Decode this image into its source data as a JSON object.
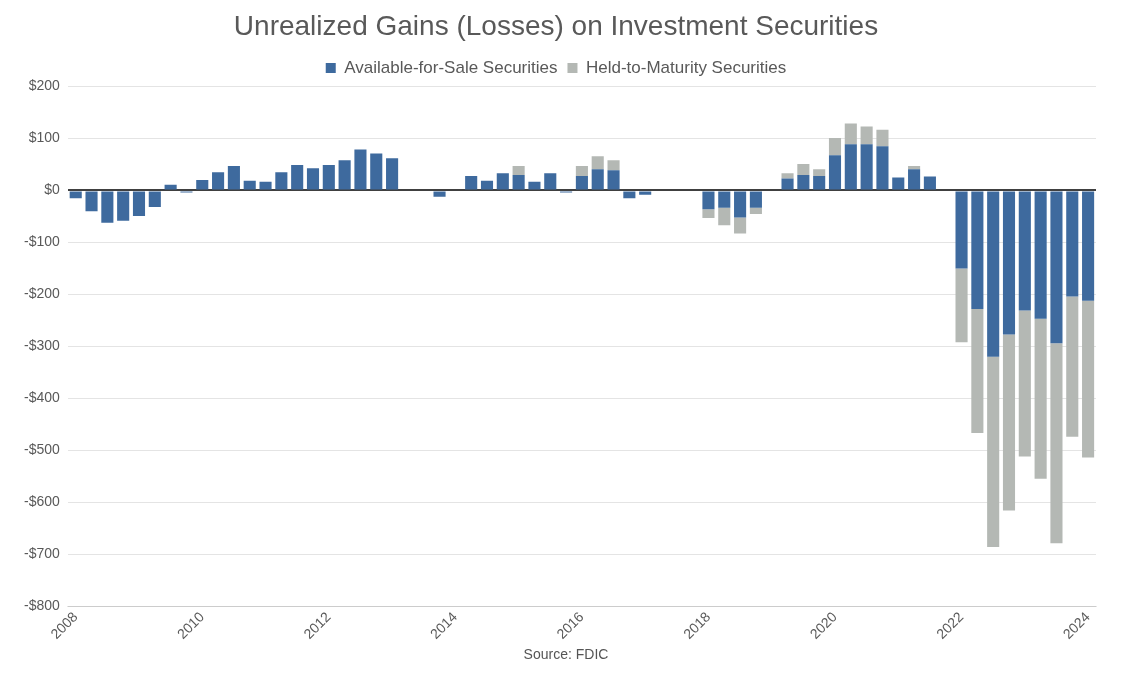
{
  "chart_data": {
    "type": "bar",
    "title": "Unrealized Gains (Losses) on Investment Securities",
    "stacked": true,
    "legend": "top",
    "grid": "y",
    "categories": [
      "2008",
      null,
      null,
      null,
      null,
      null,
      null,
      null,
      "2010",
      null,
      null,
      null,
      null,
      null,
      null,
      null,
      "2012",
      null,
      null,
      null,
      null,
      null,
      null,
      null,
      "2014",
      null,
      null,
      null,
      null,
      null,
      null,
      null,
      "2016",
      null,
      null,
      null,
      null,
      null,
      null,
      null,
      "2018",
      null,
      null,
      null,
      null,
      null,
      null,
      null,
      "2020",
      null,
      null,
      null,
      null,
      null,
      null,
      null,
      "2022",
      null,
      null,
      null,
      null,
      null,
      null,
      null,
      "2024"
    ],
    "series": [
      {
        "name": "Available-for-Sale Securities",
        "color": "#3e6a9e",
        "values": [
          -15,
          -40,
          -62,
          -58,
          -49,
          -32,
          11,
          -4,
          20,
          35,
          47,
          19,
          17,
          35,
          49,
          43,
          49,
          58,
          79,
          71,
          62,
          2,
          null,
          -12,
          2,
          28,
          19,
          33,
          30,
          17,
          33,
          -4,
          28,
          41,
          39,
          -15,
          -8,
          2,
          2,
          null,
          -36,
          -33,
          -52,
          -33,
          null,
          23,
          30,
          28,
          68,
          89,
          89,
          85,
          25,
          41,
          27,
          null,
          -150,
          -228,
          -320,
          -277,
          -231,
          -247,
          -294,
          -204,
          -212
        ]
      },
      {
        "name": "Held-to-Maturity Securities",
        "color": "#b4b8b4",
        "values": [
          0,
          0,
          0,
          0,
          0,
          0,
          0,
          0,
          0,
          0,
          0,
          0,
          0,
          0,
          0,
          0,
          0,
          0,
          0,
          0,
          0,
          0,
          0,
          0,
          0,
          0,
          0,
          0,
          17,
          0,
          0,
          0,
          19,
          25,
          19,
          0,
          0,
          0,
          0,
          0,
          -17,
          -34,
          -31,
          -12,
          0,
          10,
          21,
          13,
          33,
          40,
          34,
          32,
          0,
          6,
          0,
          0,
          -142,
          -239,
          -366,
          -339,
          -281,
          -308,
          -385,
          -270,
          -302
        ]
      }
    ],
    "ylim": [
      -800,
      200
    ],
    "yticks": [
      {
        "value": 200,
        "label": "$200"
      },
      {
        "value": 100,
        "label": "$100"
      },
      {
        "value": 0,
        "label": "$0"
      },
      {
        "value": -100,
        "label": "-$100"
      },
      {
        "value": -200,
        "label": "-$200"
      },
      {
        "value": -300,
        "label": "-$300"
      },
      {
        "value": -400,
        "label": "-$400"
      },
      {
        "value": -500,
        "label": "-$500"
      },
      {
        "value": -600,
        "label": "-$600"
      },
      {
        "value": -700,
        "label": "-$700"
      },
      {
        "value": -800,
        "label": "-$800"
      }
    ],
    "annotations": [
      "Source: FDIC"
    ]
  }
}
